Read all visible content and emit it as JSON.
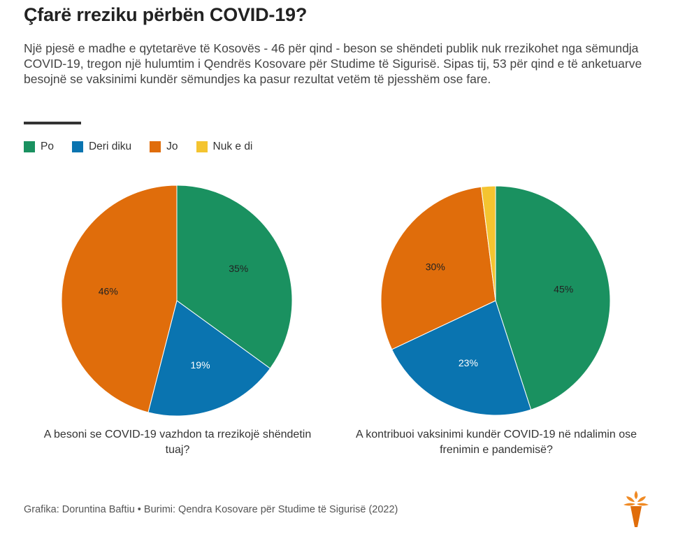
{
  "title": "Çfarë rreziku përbën COVID-19?",
  "subtitle": "Një pjesë e madhe e qytetarëve të Kosovës - 46 për qind - beson se shëndeti publik nuk rrezikohet nga sëmundja COVID-19, tregon një hulumtim i Qendrës Kosovare për Studime të Sigurisë. Sipas tij, 53 për qind e të anketuarve besojnë se vaksinimi kundër sëmundjes ka pasur rezultat vetëm të pjesshëm ose fare.",
  "legend": [
    {
      "label": "Po",
      "color": "#1a9160"
    },
    {
      "label": "Deri diku",
      "color": "#0a74b0"
    },
    {
      "label": "Jo",
      "color": "#e06d0b"
    },
    {
      "label": "Nuk e di",
      "color": "#f4c430"
    }
  ],
  "chart_data": [
    {
      "type": "pie",
      "title": "A besoni se COVID-19 vazhdon ta rrezikojë shëndetin tuaj?",
      "categories": [
        "Po",
        "Deri diku",
        "Jo",
        "Nuk e di"
      ],
      "values": [
        35,
        19,
        46,
        0
      ],
      "labels": [
        "35%",
        "19%",
        "46%",
        ""
      ]
    },
    {
      "type": "pie",
      "title": "A kontribuoi vaksinimi kundër COVID-19 në ndalimin ose frenimin e pandemisë?",
      "categories": [
        "Po",
        "Deri diku",
        "Jo",
        "Nuk e di"
      ],
      "values": [
        45,
        23,
        30,
        2
      ],
      "labels": [
        "45%",
        "23%",
        "30%",
        ""
      ]
    }
  ],
  "footer": "Grafika: Doruntina Baftiu • Burimi: Qendra Kosovare për Studime të Sigurisë (2022)",
  "logo_icon": "rfe-torch-logo-icon"
}
